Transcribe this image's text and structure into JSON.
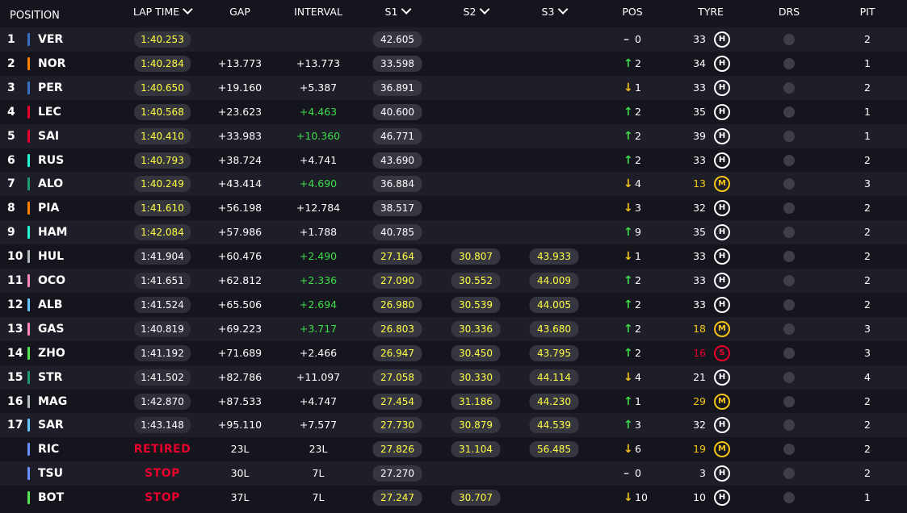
{
  "header": {
    "position": "POSITION",
    "lap_time": "LAP TIME",
    "gap": "GAP",
    "interval": "INTERVAL",
    "s1": "S1",
    "s2": "S2",
    "s3": "S3",
    "pos": "POS",
    "tyre": "TYRE",
    "drs": "DRS",
    "pit": "PIT"
  },
  "colors": {
    "background": "#15151e",
    "row_alt": "#1e1e28",
    "personal_best": "#ffff44",
    "gain": "#3ddc4a",
    "loss": "#f5c518",
    "retired": "#e8002d"
  },
  "rows": [
    {
      "pos": "1",
      "color": "#3671c6",
      "code": "VER",
      "lap": "1:40.253",
      "lap_style": "pb",
      "gap": "",
      "interval": "",
      "interval_green": false,
      "s1": "42.605",
      "s1_style": "w",
      "s2": "",
      "s3": "",
      "dir": "same",
      "delta": "0",
      "tyre_laps": "33",
      "tyre": "H",
      "pit": "2"
    },
    {
      "pos": "2",
      "color": "#ff8000",
      "code": "NOR",
      "lap": "1:40.284",
      "lap_style": "pb",
      "gap": "+13.773",
      "interval": "+13.773",
      "interval_green": false,
      "s1": "33.598",
      "s1_style": "w",
      "s2": "",
      "s3": "",
      "dir": "up",
      "delta": "2",
      "tyre_laps": "34",
      "tyre": "H",
      "pit": "1"
    },
    {
      "pos": "3",
      "color": "#3671c6",
      "code": "PER",
      "lap": "1:40.650",
      "lap_style": "pb",
      "gap": "+19.160",
      "interval": "+5.387",
      "interval_green": false,
      "s1": "36.891",
      "s1_style": "w",
      "s2": "",
      "s3": "",
      "dir": "down",
      "delta": "1",
      "tyre_laps": "33",
      "tyre": "H",
      "pit": "2"
    },
    {
      "pos": "4",
      "color": "#e8002d",
      "code": "LEC",
      "lap": "1:40.568",
      "lap_style": "pb",
      "gap": "+23.623",
      "interval": "+4.463",
      "interval_green": true,
      "s1": "40.600",
      "s1_style": "w",
      "s2": "",
      "s3": "",
      "dir": "up",
      "delta": "2",
      "tyre_laps": "35",
      "tyre": "H",
      "pit": "1"
    },
    {
      "pos": "5",
      "color": "#e8002d",
      "code": "SAI",
      "lap": "1:40.410",
      "lap_style": "pb",
      "gap": "+33.983",
      "interval": "+10.360",
      "interval_green": true,
      "s1": "46.771",
      "s1_style": "w",
      "s2": "",
      "s3": "",
      "dir": "up",
      "delta": "2",
      "tyre_laps": "39",
      "tyre": "H",
      "pit": "1"
    },
    {
      "pos": "6",
      "color": "#27f4d2",
      "code": "RUS",
      "lap": "1:40.793",
      "lap_style": "pb",
      "gap": "+38.724",
      "interval": "+4.741",
      "interval_green": false,
      "s1": "43.690",
      "s1_style": "w",
      "s2": "",
      "s3": "",
      "dir": "up",
      "delta": "2",
      "tyre_laps": "33",
      "tyre": "H",
      "pit": "2"
    },
    {
      "pos": "7",
      "color": "#229971",
      "code": "ALO",
      "lap": "1:40.249",
      "lap_style": "pb",
      "gap": "+43.414",
      "interval": "+4.690",
      "interval_green": true,
      "s1": "36.884",
      "s1_style": "w",
      "s2": "",
      "s3": "",
      "dir": "down",
      "delta": "4",
      "tyre_laps": "13",
      "tyre": "M",
      "pit": "3"
    },
    {
      "pos": "8",
      "color": "#ff8000",
      "code": "PIA",
      "lap": "1:41.610",
      "lap_style": "pb",
      "gap": "+56.198",
      "interval": "+12.784",
      "interval_green": false,
      "s1": "38.517",
      "s1_style": "w",
      "s2": "",
      "s3": "",
      "dir": "down",
      "delta": "3",
      "tyre_laps": "32",
      "tyre": "H",
      "pit": "2"
    },
    {
      "pos": "9",
      "color": "#27f4d2",
      "code": "HAM",
      "lap": "1:42.084",
      "lap_style": "pb",
      "gap": "+57.986",
      "interval": "+1.788",
      "interval_green": false,
      "s1": "40.785",
      "s1_style": "w",
      "s2": "",
      "s3": "",
      "dir": "up",
      "delta": "9",
      "tyre_laps": "35",
      "tyre": "H",
      "pit": "2"
    },
    {
      "pos": "10",
      "color": "#b6babd",
      "code": "HUL",
      "lap": "1:41.904",
      "lap_style": "w",
      "gap": "+60.476",
      "interval": "+2.490",
      "interval_green": true,
      "s1": "27.164",
      "s1_style": "y",
      "s2": "30.807",
      "s3": "43.933",
      "dir": "down",
      "delta": "1",
      "tyre_laps": "33",
      "tyre": "H",
      "pit": "2"
    },
    {
      "pos": "11",
      "color": "#ff87bc",
      "code": "OCO",
      "lap": "1:41.651",
      "lap_style": "w",
      "gap": "+62.812",
      "interval": "+2.336",
      "interval_green": true,
      "s1": "27.090",
      "s1_style": "y",
      "s2": "30.552",
      "s3": "44.009",
      "dir": "up",
      "delta": "2",
      "tyre_laps": "33",
      "tyre": "H",
      "pit": "2"
    },
    {
      "pos": "12",
      "color": "#64c4ff",
      "code": "ALB",
      "lap": "1:41.524",
      "lap_style": "w",
      "gap": "+65.506",
      "interval": "+2.694",
      "interval_green": true,
      "s1": "26.980",
      "s1_style": "y",
      "s2": "30.539",
      "s3": "44.005",
      "dir": "up",
      "delta": "2",
      "tyre_laps": "33",
      "tyre": "H",
      "pit": "2"
    },
    {
      "pos": "13",
      "color": "#ff87bc",
      "code": "GAS",
      "lap": "1:40.819",
      "lap_style": "w",
      "gap": "+69.223",
      "interval": "+3.717",
      "interval_green": true,
      "s1": "26.803",
      "s1_style": "y",
      "s2": "30.336",
      "s3": "43.680",
      "dir": "up",
      "delta": "2",
      "tyre_laps": "18",
      "tyre": "M",
      "pit": "3"
    },
    {
      "pos": "14",
      "color": "#52e252",
      "code": "ZHO",
      "lap": "1:41.192",
      "lap_style": "w",
      "gap": "+71.689",
      "interval": "+2.466",
      "interval_green": false,
      "s1": "26.947",
      "s1_style": "y",
      "s2": "30.450",
      "s3": "43.795",
      "dir": "up",
      "delta": "2",
      "tyre_laps": "16",
      "tyre": "S",
      "pit": "3"
    },
    {
      "pos": "15",
      "color": "#229971",
      "code": "STR",
      "lap": "1:41.502",
      "lap_style": "w",
      "gap": "+82.786",
      "interval": "+11.097",
      "interval_green": false,
      "s1": "27.058",
      "s1_style": "y",
      "s2": "30.330",
      "s3": "44.114",
      "dir": "down",
      "delta": "4",
      "tyre_laps": "21",
      "tyre": "H",
      "pit": "4"
    },
    {
      "pos": "16",
      "color": "#b6babd",
      "code": "MAG",
      "lap": "1:42.870",
      "lap_style": "w",
      "gap": "+87.533",
      "interval": "+4.747",
      "interval_green": false,
      "s1": "27.454",
      "s1_style": "y",
      "s2": "31.186",
      "s3": "44.230",
      "dir": "up",
      "delta": "1",
      "tyre_laps": "29",
      "tyre": "M",
      "pit": "2"
    },
    {
      "pos": "17",
      "color": "#64c4ff",
      "code": "SAR",
      "lap": "1:43.148",
      "lap_style": "w",
      "gap": "+95.110",
      "interval": "+7.577",
      "interval_green": false,
      "s1": "27.730",
      "s1_style": "y",
      "s2": "30.879",
      "s3": "44.539",
      "dir": "up",
      "delta": "3",
      "tyre_laps": "32",
      "tyre": "H",
      "pit": "2"
    },
    {
      "pos": "",
      "color": "#6692ff",
      "code": "RIC",
      "lap": "RETIRED",
      "lap_style": "out",
      "gap": "23L",
      "interval": "23L",
      "interval_green": false,
      "s1": "27.826",
      "s1_style": "y",
      "s2": "31.104",
      "s3": "56.485",
      "dir": "down",
      "delta": "6",
      "tyre_laps": "19",
      "tyre": "M",
      "pit": "2"
    },
    {
      "pos": "",
      "color": "#6692ff",
      "code": "TSU",
      "lap": "STOP",
      "lap_style": "out",
      "gap": "30L",
      "interval": "7L",
      "interval_green": false,
      "s1": "27.270",
      "s1_style": "w",
      "s2": "",
      "s3": "",
      "dir": "same",
      "delta": "0",
      "tyre_laps": "3",
      "tyre": "H",
      "pit": "2"
    },
    {
      "pos": "",
      "color": "#52e252",
      "code": "BOT",
      "lap": "STOP",
      "lap_style": "out",
      "gap": "37L",
      "interval": "7L",
      "interval_green": false,
      "s1": "27.247",
      "s1_style": "y",
      "s2": "30.707",
      "s3": "",
      "dir": "down",
      "delta": "10",
      "tyre_laps": "10",
      "tyre": "H",
      "pit": "1"
    }
  ]
}
